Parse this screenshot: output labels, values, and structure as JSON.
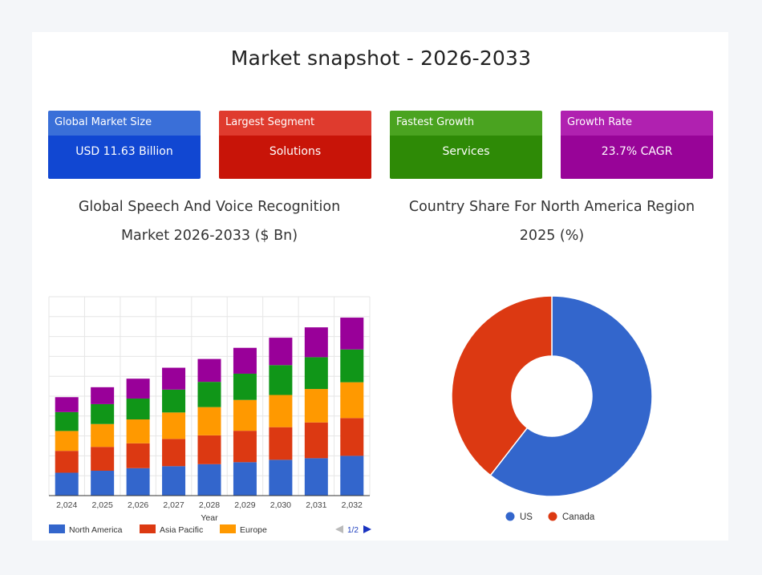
{
  "page_title": "Market snapshot - 2026-2033",
  "kpis": [
    {
      "label": "Global Market Size",
      "value": "USD 11.63 Billion",
      "head": "#3a6fd8",
      "body": "#1147d2"
    },
    {
      "label": "Largest Segment",
      "value": "Solutions",
      "head": "#df3b2e",
      "body": "#c81408"
    },
    {
      "label": "Fastest Growth",
      "value": "Services",
      "head": "#4aa320",
      "body": "#2e8a06"
    },
    {
      "label": "Growth Rate",
      "value": "23.7% CAGR",
      "head": "#b021b0",
      "body": "#980498"
    }
  ],
  "chart_data": [
    {
      "type": "bar",
      "stacked": true,
      "title_line1": "Global Speech And Voice Recognition",
      "title_line2": "Market 2026-2033 ($ Bn)",
      "xlabel": "Year",
      "ylim": [
        0,
        10
      ],
      "categories": [
        "2,024",
        "2,025",
        "2,026",
        "2,027",
        "2,028",
        "2,029",
        "2,030",
        "2,031",
        "2,032"
      ],
      "series": [
        {
          "name": "North America",
          "color": "#3366cc",
          "values": [
            1.15,
            1.25,
            1.38,
            1.48,
            1.58,
            1.68,
            1.8,
            1.88,
            2.0
          ]
        },
        {
          "name": "Asia Pacific",
          "color": "#dc3912",
          "values": [
            1.1,
            1.2,
            1.25,
            1.37,
            1.45,
            1.58,
            1.64,
            1.8,
            1.9
          ]
        },
        {
          "name": "Europe",
          "color": "#ff9900",
          "values": [
            1.0,
            1.15,
            1.2,
            1.33,
            1.42,
            1.55,
            1.62,
            1.68,
            1.8
          ]
        },
        {
          "name": "",
          "color": "#109618",
          "values": [
            0.95,
            1.0,
            1.05,
            1.15,
            1.27,
            1.32,
            1.5,
            1.6,
            1.65
          ]
        },
        {
          "name": "",
          "color": "#990099",
          "values": [
            0.75,
            0.85,
            1.0,
            1.1,
            1.15,
            1.3,
            1.38,
            1.5,
            1.6
          ]
        }
      ],
      "legend_visible": [
        "North America",
        "Asia Pacific",
        "Europe"
      ],
      "legend_page": "1/2"
    },
    {
      "type": "pie",
      "donut": true,
      "title_line1": "Country Share For North America Region",
      "title_line2": "2025 (%)",
      "labels": [
        "US",
        "Canada"
      ],
      "values": [
        60.5,
        39.5
      ],
      "colors": [
        "#3366cc",
        "#dc3912"
      ]
    }
  ]
}
